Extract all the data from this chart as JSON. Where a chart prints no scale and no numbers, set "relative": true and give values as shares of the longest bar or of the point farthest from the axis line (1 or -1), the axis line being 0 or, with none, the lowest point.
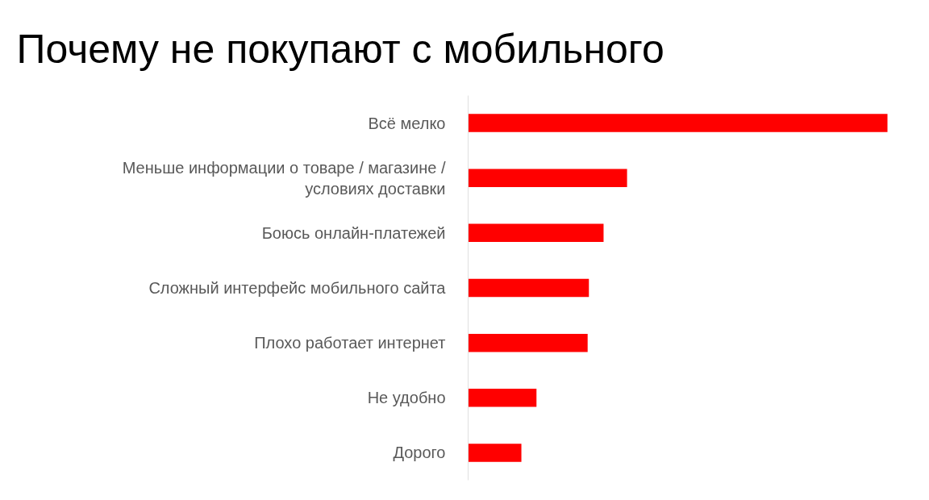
{
  "chart_data": {
    "type": "bar",
    "orientation": "horizontal",
    "relative": true,
    "title": "Почему не покупают с мобильного",
    "categories": [
      "Всё мелко",
      "Меньше информации о товаре / магазине / условиях доставки",
      "Боюсь онлайн-платежей",
      "Сложный интерфейс мобильного сайта",
      "Плохо работает интернет",
      "Не удобно",
      "Дорого"
    ],
    "values": [
      1,
      0.379,
      0.323,
      0.288,
      0.285,
      0.163,
      0.127
    ],
    "color": "#ff0000",
    "grid": false
  }
}
